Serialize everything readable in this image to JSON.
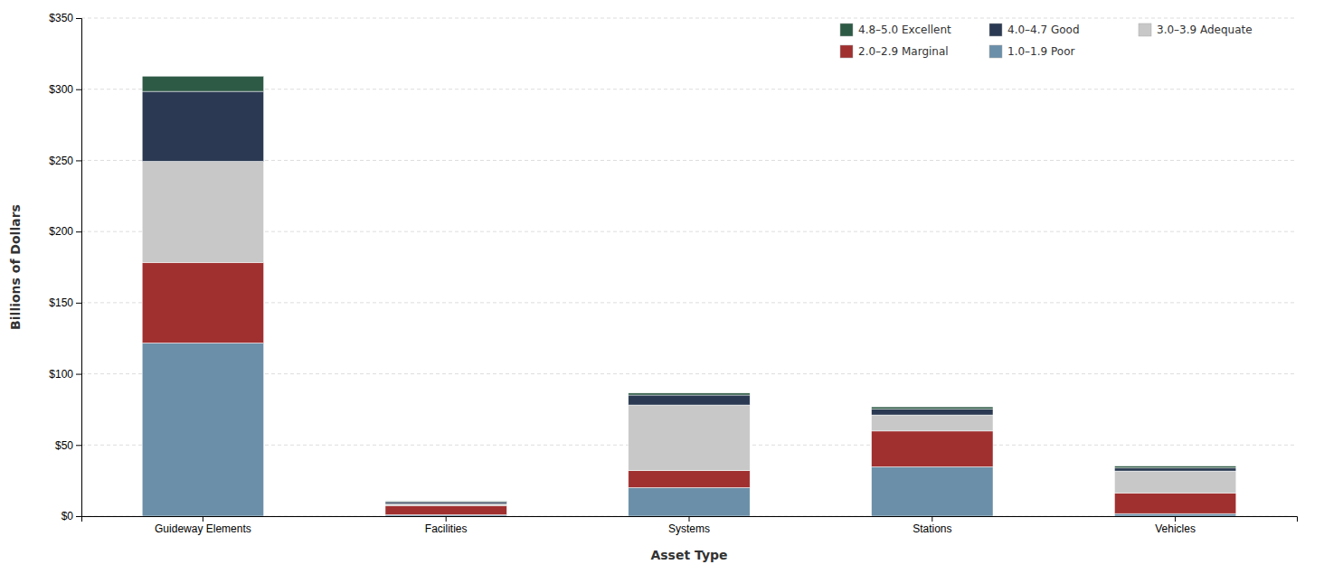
{
  "chart_data": {
    "type": "bar",
    "stacked": true,
    "categories": [
      "Guideway Elements",
      "Facilities",
      "Systems",
      "Stations",
      "Vehicles"
    ],
    "series": [
      {
        "name": "1.0–1.9 Poor",
        "color": "#6b8fa8",
        "values": [
          121.7,
          1.0,
          20.1,
          34.7,
          1.8
        ]
      },
      {
        "name": "2.0–2.9 Marginal",
        "color": "#a03030",
        "values": [
          56.6,
          6.4,
          11.9,
          25.1,
          14.5
        ]
      },
      {
        "name": "3.0–3.9 Adequate",
        "color": "#c8c8c8",
        "values": [
          71.0,
          1.3,
          46.1,
          11.3,
          15.4
        ]
      },
      {
        "name": "4.0–4.7 Good",
        "color": "#2b3a52",
        "values": [
          49.2,
          1.4,
          7.0,
          4.1,
          2.1
        ]
      },
      {
        "name": "4.8–5.0 Excellent",
        "color": "#2d5a45",
        "values": [
          10.7,
          0.5,
          1.4,
          1.6,
          1.4
        ]
      }
    ],
    "xlabel": "Asset Type",
    "ylabel": "Billions of Dollars",
    "ylim": [
      0,
      350
    ],
    "yticks": [
      {
        "value": 0,
        "label": "$0"
      },
      {
        "value": 50,
        "label": "$50"
      },
      {
        "value": 100,
        "label": "$100"
      },
      {
        "value": 150,
        "label": "$150"
      },
      {
        "value": 200,
        "label": "$200"
      },
      {
        "value": 250,
        "label": "$250"
      },
      {
        "value": 300,
        "label": "$300"
      },
      {
        "value": 350,
        "label": "$350"
      }
    ],
    "grid": true,
    "legend": "upper right"
  }
}
